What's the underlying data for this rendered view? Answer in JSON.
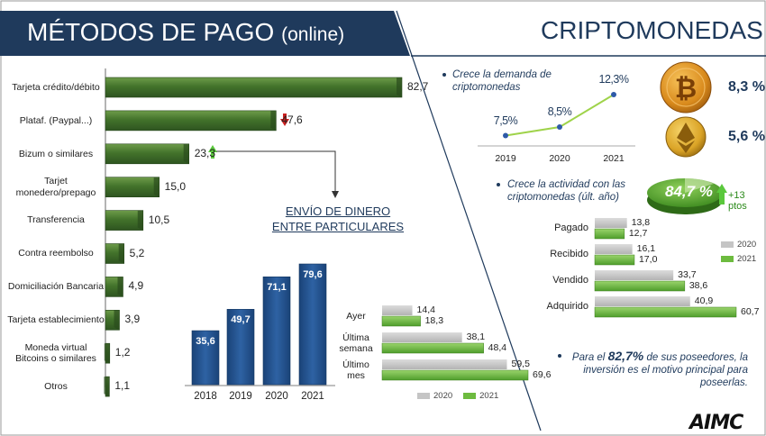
{
  "header": {
    "title_left": "MÉTODOS DE PAGO",
    "title_left_suffix": "(online)",
    "title_right": "CRIPTOMONEDAS",
    "logo": "AIMC"
  },
  "colors": {
    "navy": "#1f3a5c",
    "green_dark": "#3d6b2a",
    "green_light": "#6dbb3f",
    "gray": "#c5c5c5",
    "bar_blue": "#245592",
    "arrow_red": "#cc1f1f",
    "arrow_green": "#5ac83c"
  },
  "chart_data": [
    {
      "id": "payment_methods",
      "type": "bar",
      "orientation": "horizontal",
      "categories": [
        "Tarjeta crédito/débito",
        "Plataf. (Paypal...)",
        "Bizum o similares",
        "Tarjet monedero/prepago",
        "Transferencia",
        "Contra reembolso",
        "Domiciliación Bancaria",
        "Tarjeta establecimiento",
        "Moneda virtual Bitcoins o similares",
        "Otros"
      ],
      "values": [
        82.7,
        47.6,
        23.3,
        15.0,
        10.5,
        5.2,
        4.9,
        3.9,
        1.2,
        1.1
      ],
      "value_labels": [
        "82,7",
        "47,6",
        "23,3",
        "15,0",
        "10,5",
        "5,2",
        "4,9",
        "3,9",
        "1,2",
        "1,1"
      ],
      "trend_icons": [
        "",
        "arrow-down",
        "arrow-up",
        "",
        "",
        "",
        "",
        "",
        "",
        ""
      ],
      "xlim": [
        0,
        82.7
      ]
    },
    {
      "id": "p2p_transfers",
      "type": "bar",
      "title": "ENVÍO DE DINERO ENTRE PARTICULARES",
      "categories": [
        "2018",
        "2019",
        "2020",
        "2021"
      ],
      "values": [
        35.6,
        49.7,
        71.1,
        79.6
      ],
      "value_labels": [
        "35,6",
        "49,7",
        "71,1",
        "79,6"
      ],
      "ylim": [
        0,
        79.6
      ]
    },
    {
      "id": "p2p_frequency",
      "type": "bar",
      "orientation": "horizontal",
      "categories": [
        "Ayer",
        "Última semana",
        "Último mes"
      ],
      "series": [
        {
          "name": "2020",
          "values": [
            14.4,
            38.1,
            59.5
          ],
          "labels": [
            "14,4",
            "38,1",
            "59,5"
          ]
        },
        {
          "name": "2021",
          "values": [
            18.3,
            48.4,
            69.6
          ],
          "labels": [
            "18,3",
            "48,4",
            "69,6"
          ]
        }
      ],
      "xlim": [
        0,
        69.6
      ],
      "legend": "bottom"
    },
    {
      "id": "crypto_demand",
      "type": "line",
      "title": "Crece la demanda de criptomonedas",
      "x": [
        "2019",
        "2020",
        "2021"
      ],
      "values": [
        7.5,
        8.5,
        12.3
      ],
      "value_labels": [
        "7,5%",
        "8,5%",
        "12,3%"
      ]
    },
    {
      "id": "crypto_activity",
      "type": "bar",
      "orientation": "horizontal",
      "title": "Crece la actividad con las criptomonedas (últ. año)",
      "categories": [
        "Pagado",
        "Recibido",
        "Vendido",
        "Adquirido"
      ],
      "series": [
        {
          "name": "2020",
          "values": [
            13.8,
            16.1,
            33.7,
            40.9
          ],
          "labels": [
            "13,8",
            "16,1",
            "33,7",
            "40,9"
          ]
        },
        {
          "name": "2021",
          "values": [
            12.7,
            17.0,
            38.6,
            60.7
          ],
          "labels": [
            "12,7",
            "17,0",
            "38,6",
            "60,7"
          ]
        }
      ],
      "xlim": [
        0,
        60.7
      ],
      "legend": "right"
    }
  ],
  "crypto": {
    "activity_pct": "84,7 %",
    "activity_delta": "+13 ptos",
    "bitcoin_pct": "8,3 %",
    "ethereum_pct": "5,6 %",
    "note_before": "Para el",
    "note_highlight": "82,7%",
    "note_after": "de sus poseedores, la inversión es el motivo principal para poseerlas."
  }
}
